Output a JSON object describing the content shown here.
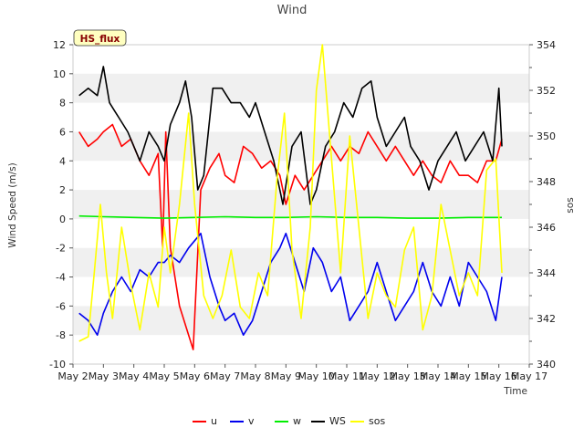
{
  "chart_data": {
    "type": "line",
    "title": "Wind",
    "xlabel": "Time",
    "ylabel": "Wind Speed (m/s)",
    "y2label": "sos",
    "badge": "HS_flux",
    "x_tick_labels": [
      "May 2",
      "May 3",
      "May 4",
      "May 5",
      "May 6",
      "May 7",
      "May 8",
      "May 9",
      "May 10",
      "May 11",
      "May 12",
      "May 13",
      "May 14",
      "May 15",
      "May 16",
      "May 17"
    ],
    "xlim": [
      2,
      17
    ],
    "ylim": [
      -10,
      12
    ],
    "y_ticks": [
      -10,
      -8,
      -6,
      -4,
      -2,
      0,
      2,
      4,
      6,
      8,
      10,
      12
    ],
    "y2lim": [
      340,
      354
    ],
    "y2_ticks": [
      340,
      342,
      344,
      346,
      348,
      350,
      352,
      354
    ],
    "grid": "horizontal bands",
    "legend_position": "bottom",
    "series": [
      {
        "name": "u",
        "axis": "left",
        "color": "#ff0000",
        "x": [
          2.2,
          2.5,
          2.8,
          3.0,
          3.3,
          3.6,
          3.9,
          4.2,
          4.5,
          4.8,
          4.95,
          5.05,
          5.2,
          5.5,
          5.8,
          5.95,
          6.2,
          6.5,
          6.8,
          7.0,
          7.3,
          7.6,
          7.9,
          8.2,
          8.5,
          8.8,
          9.0,
          9.3,
          9.6,
          9.9,
          10.2,
          10.5,
          10.8,
          11.1,
          11.4,
          11.7,
          12.0,
          12.3,
          12.6,
          12.9,
          13.2,
          13.5,
          13.8,
          14.1,
          14.4,
          14.7,
          15.0,
          15.3,
          15.6,
          15.9,
          16.1
        ],
        "values": [
          6,
          5,
          5.5,
          6,
          6.5,
          5,
          5.5,
          4,
          3,
          4.5,
          -2,
          6,
          -2,
          -6,
          -8,
          -9,
          2,
          3.5,
          4.5,
          3,
          2.5,
          5,
          4.5,
          3.5,
          4,
          3,
          1,
          3,
          2,
          3,
          4,
          5,
          4,
          5,
          4.5,
          6,
          5,
          4,
          5,
          4,
          3,
          4,
          3,
          2.5,
          4,
          3,
          3,
          2.5,
          4,
          4,
          5.5
        ]
      },
      {
        "name": "v",
        "axis": "left",
        "color": "#0000ee",
        "x": [
          2.2,
          2.5,
          2.8,
          3.0,
          3.3,
          3.6,
          3.9,
          4.2,
          4.5,
          4.8,
          5.0,
          5.2,
          5.5,
          5.8,
          6.0,
          6.2,
          6.5,
          6.8,
          7.0,
          7.3,
          7.6,
          7.9,
          8.2,
          8.5,
          8.8,
          9.0,
          9.3,
          9.6,
          9.9,
          10.2,
          10.5,
          10.8,
          11.1,
          11.4,
          11.7,
          12.0,
          12.3,
          12.6,
          12.9,
          13.2,
          13.5,
          13.8,
          14.1,
          14.4,
          14.7,
          15.0,
          15.3,
          15.6,
          15.9,
          16.1
        ],
        "values": [
          -6.5,
          -7,
          -8,
          -6.5,
          -5,
          -4,
          -5,
          -3.5,
          -4,
          -3,
          -3,
          -2.5,
          -3,
          -2,
          -1.5,
          -1,
          -4,
          -6,
          -7,
          -6.5,
          -8,
          -7,
          -5,
          -3,
          -2,
          -1,
          -3,
          -5,
          -2,
          -3,
          -5,
          -4,
          -7,
          -6,
          -5,
          -3,
          -5,
          -7,
          -6,
          -5,
          -3,
          -5,
          -6,
          -4,
          -6,
          -3,
          -4,
          -5,
          -7,
          -4
        ]
      },
      {
        "name": "w",
        "axis": "left",
        "color": "#00ee00",
        "x": [
          2.2,
          3,
          4,
          5,
          6,
          7,
          8,
          9,
          10,
          11,
          12,
          13,
          14,
          15,
          16.1
        ],
        "values": [
          0.2,
          0.15,
          0.1,
          0.05,
          0.1,
          0.15,
          0.1,
          0.1,
          0.15,
          0.1,
          0.1,
          0.05,
          0.05,
          0.1,
          0.1
        ]
      },
      {
        "name": "WS",
        "axis": "left",
        "color": "#000000",
        "x": [
          2.2,
          2.5,
          2.8,
          3.0,
          3.2,
          3.5,
          3.8,
          4.0,
          4.2,
          4.5,
          4.8,
          5.0,
          5.2,
          5.5,
          5.7,
          5.9,
          6.1,
          6.3,
          6.6,
          6.9,
          7.2,
          7.5,
          7.8,
          8.0,
          8.3,
          8.6,
          8.9,
          9.2,
          9.5,
          9.8,
          10.0,
          10.3,
          10.6,
          10.9,
          11.2,
          11.5,
          11.8,
          12.0,
          12.3,
          12.6,
          12.9,
          13.1,
          13.4,
          13.7,
          14.0,
          14.3,
          14.6,
          14.9,
          15.2,
          15.5,
          15.8,
          16.0,
          16.1
        ],
        "values": [
          8.5,
          9,
          8.5,
          10.5,
          8,
          7,
          6,
          5,
          4,
          6,
          5,
          4,
          6.5,
          8,
          9.5,
          7,
          2,
          3,
          9,
          9,
          8,
          8,
          7,
          8,
          6,
          4,
          1,
          5,
          6,
          1,
          2,
          5,
          6,
          8,
          7,
          9,
          9.5,
          7,
          5,
          6,
          7,
          5,
          4,
          2,
          4,
          5,
          6,
          4,
          5,
          6,
          4,
          9,
          5
        ]
      },
      {
        "name": "sos",
        "axis": "right",
        "color": "#ffff00",
        "x": [
          2.2,
          2.5,
          2.7,
          2.9,
          3.1,
          3.3,
          3.6,
          3.9,
          4.2,
          4.5,
          4.8,
          5.0,
          5.2,
          5.5,
          5.8,
          6.0,
          6.3,
          6.6,
          6.9,
          7.2,
          7.5,
          7.8,
          8.1,
          8.4,
          8.7,
          8.95,
          9.2,
          9.5,
          9.8,
          10.0,
          10.2,
          10.5,
          10.8,
          11.1,
          11.4,
          11.7,
          12.0,
          12.3,
          12.6,
          12.9,
          13.2,
          13.5,
          13.8,
          14.1,
          14.4,
          14.7,
          15.0,
          15.3,
          15.6,
          15.9,
          16.1
        ],
        "values": [
          341,
          341.2,
          344,
          347,
          344,
          342,
          346,
          343.5,
          341.5,
          344,
          342.5,
          346,
          344,
          347,
          351,
          347,
          343,
          342,
          343,
          345,
          342.5,
          342,
          344,
          343,
          348,
          351,
          345,
          342,
          346,
          352,
          354,
          349,
          344,
          350,
          346,
          342,
          344,
          343,
          342.5,
          345,
          346,
          341.5,
          343,
          347,
          345,
          343,
          344,
          343,
          348.5,
          349,
          344
        ]
      }
    ]
  }
}
